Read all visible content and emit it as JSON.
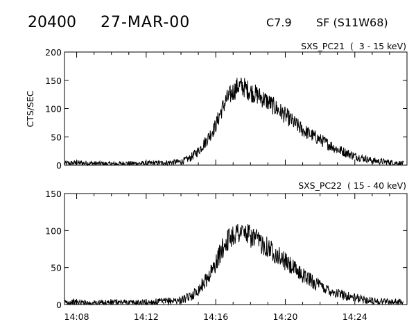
{
  "header": {
    "event_id": "20400",
    "date": "27-MAR-00",
    "flare_class": "C7.9",
    "location": "SF (S11W68)"
  },
  "chart_data": [
    {
      "type": "line",
      "title": "SXS_PC21  (  3 - 15 keV)",
      "ylabel": "CTS/SEC",
      "xlabel": "",
      "xlim": [
        "14:07.3",
        "14:27.0"
      ],
      "ylim": [
        0,
        200
      ],
      "y_ticks": [
        0,
        50,
        100,
        150,
        200
      ],
      "x_ticks": [
        "14:08",
        "14:12",
        "14:16",
        "14:20",
        "14:24"
      ],
      "grid": false,
      "series": [
        {
          "x": [
            "14:07.3",
            "14:08",
            "14:09",
            "14:10",
            "14:10.8",
            "14:11.5",
            "14:12",
            "14:13",
            "14:14",
            "14:14.5",
            "14:15",
            "14:15.5",
            "14:16",
            "14:16.3",
            "14:16.6",
            "14:17",
            "14:17.3",
            "14:17.6",
            "14:18",
            "14:18.5",
            "14:19",
            "14:19.5",
            "14:20",
            "14:20.5",
            "14:21",
            "14:22",
            "14:23",
            "14:24",
            "14:25",
            "14:26",
            "14:26.8"
          ],
          "y": [
            3,
            4,
            3,
            2,
            3,
            3,
            3,
            4,
            6,
            12,
            25,
            45,
            70,
            95,
            115,
            130,
            140,
            138,
            130,
            122,
            112,
            100,
            88,
            75,
            62,
            45,
            28,
            16,
            8,
            5,
            3
          ]
        }
      ]
    },
    {
      "type": "line",
      "title": "SXS_PC22  ( 15 - 40 keV)",
      "ylabel": "",
      "xlabel": "",
      "xlim": [
        "14:07.3",
        "14:27.0"
      ],
      "ylim": [
        0,
        150
      ],
      "y_ticks": [
        0,
        50,
        100,
        150
      ],
      "x_ticks": [
        "14:08",
        "14:12",
        "14:16",
        "14:20",
        "14:24"
      ],
      "grid": false,
      "series": [
        {
          "x": [
            "14:07.3",
            "14:08",
            "14:09",
            "14:10",
            "14:10.8",
            "14:11.5",
            "14:12",
            "14:13",
            "14:14",
            "14:14.5",
            "14:15",
            "14:15.5",
            "14:16",
            "14:16.3",
            "14:16.6",
            "14:17",
            "14:17.3",
            "14:17.6",
            "14:18",
            "14:18.5",
            "14:19",
            "14:19.5",
            "14:20",
            "14:20.5",
            "14:21",
            "14:22",
            "14:23",
            "14:24",
            "14:25",
            "14:26",
            "14:26.8"
          ],
          "y": [
            3,
            3,
            2,
            3,
            3,
            2,
            3,
            4,
            6,
            10,
            20,
            35,
            55,
            72,
            85,
            95,
            98,
            97,
            92,
            85,
            78,
            68,
            58,
            48,
            40,
            25,
            15,
            9,
            5,
            4,
            3
          ]
        }
      ]
    }
  ]
}
